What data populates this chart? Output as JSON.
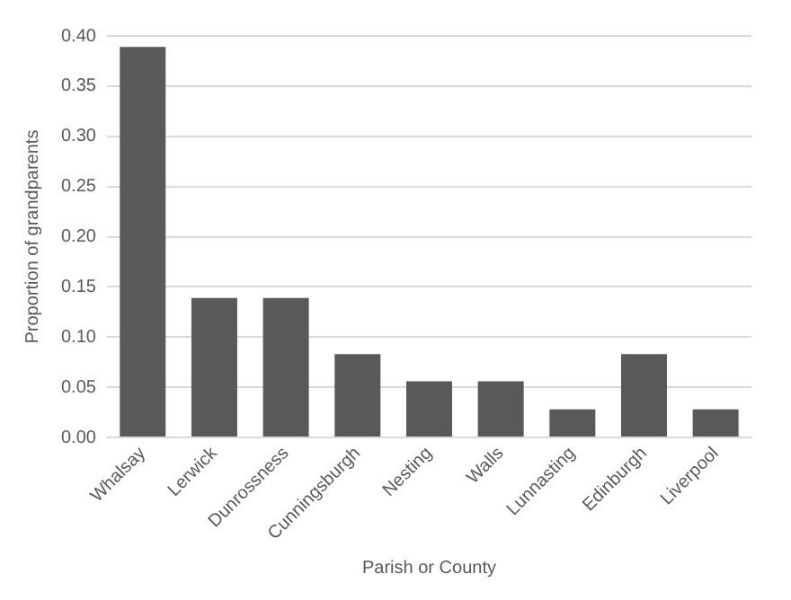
{
  "chart_data": {
    "type": "bar",
    "xlabel": "Parish or County",
    "ylabel": "Proportion of grandparents",
    "categories": [
      "Whalsay",
      "Lerwick",
      "Dunrossness",
      "Cunningsburgh",
      "Nesting",
      "Walls",
      "Lunnasting",
      "Edinburgh",
      "Liverpool"
    ],
    "values": [
      0.389,
      0.139,
      0.139,
      0.083,
      0.056,
      0.056,
      0.028,
      0.083,
      0.028
    ],
    "color": "#595959",
    "ylim": [
      0,
      0.4
    ],
    "yticks": [
      {
        "value": 0,
        "label": "0.00"
      },
      {
        "value": 0.05,
        "label": "0.05"
      },
      {
        "value": 0.1,
        "label": "0.10"
      },
      {
        "value": 0.15,
        "label": "0.15"
      },
      {
        "value": 0.2,
        "label": "0.20"
      },
      {
        "value": 0.25,
        "label": "0.25"
      },
      {
        "value": 0.3,
        "label": "0.30"
      },
      {
        "value": 0.35,
        "label": "0.35"
      },
      {
        "value": 0.4,
        "label": "0.40"
      }
    ],
    "grid": "y",
    "legend": false
  }
}
